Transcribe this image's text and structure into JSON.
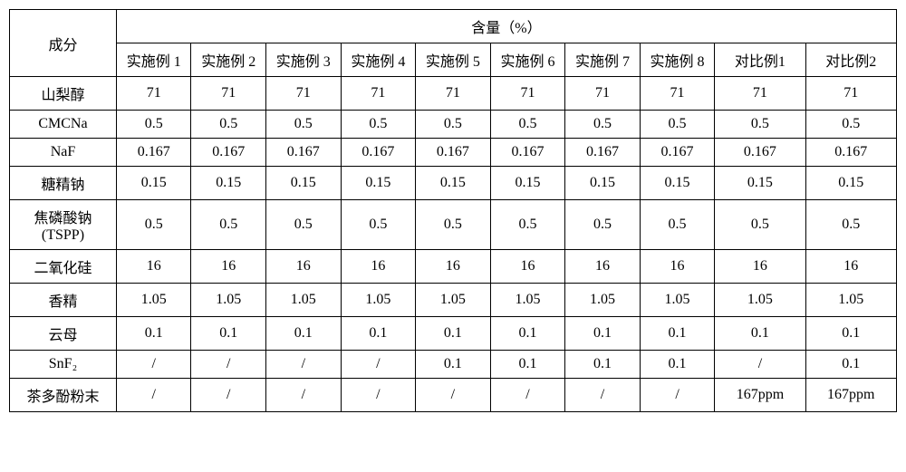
{
  "header": {
    "ingredient_label": "成分",
    "content_label": "含量（%）",
    "columns": [
      "实施例 1",
      "实施例 2",
      "实施例 3",
      "实施例 4",
      "实施例 5",
      "实施例 6",
      "实施例 7",
      "实施例 8",
      "对比例1",
      "对比例2"
    ]
  },
  "rows": [
    {
      "label": "山梨醇",
      "values": [
        "71",
        "71",
        "71",
        "71",
        "71",
        "71",
        "71",
        "71",
        "71",
        "71"
      ]
    },
    {
      "label": "CMCNa",
      "values": [
        "0.5",
        "0.5",
        "0.5",
        "0.5",
        "0.5",
        "0.5",
        "0.5",
        "0.5",
        "0.5",
        "0.5"
      ]
    },
    {
      "label": "NaF",
      "values": [
        "0.167",
        "0.167",
        "0.167",
        "0.167",
        "0.167",
        "0.167",
        "0.167",
        "0.167",
        "0.167",
        "0.167"
      ]
    },
    {
      "label": "糖精钠",
      "values": [
        "0.15",
        "0.15",
        "0.15",
        "0.15",
        "0.15",
        "0.15",
        "0.15",
        "0.15",
        "0.15",
        "0.15"
      ]
    },
    {
      "label": "焦磷酸钠\n(TSPP)",
      "values": [
        "0.5",
        "0.5",
        "0.5",
        "0.5",
        "0.5",
        "0.5",
        "0.5",
        "0.5",
        "0.5",
        "0.5"
      ]
    },
    {
      "label": "二氧化硅",
      "values": [
        "16",
        "16",
        "16",
        "16",
        "16",
        "16",
        "16",
        "16",
        "16",
        "16"
      ]
    },
    {
      "label": "香精",
      "values": [
        "1.05",
        "1.05",
        "1.05",
        "1.05",
        "1.05",
        "1.05",
        "1.05",
        "1.05",
        "1.05",
        "1.05"
      ]
    },
    {
      "label": "云母",
      "values": [
        "0.1",
        "0.1",
        "0.1",
        "0.1",
        "0.1",
        "0.1",
        "0.1",
        "0.1",
        "0.1",
        "0.1"
      ]
    },
    {
      "label": "SnF₂",
      "values": [
        "/",
        "/",
        "/",
        "/",
        "0.1",
        "0.1",
        "0.1",
        "0.1",
        "/",
        "0.1"
      ]
    },
    {
      "label": "茶多酚粉末",
      "values": [
        "/",
        "/",
        "/",
        "/",
        "/",
        "/",
        "/",
        "/",
        "167ppm",
        "167ppm"
      ]
    }
  ]
}
